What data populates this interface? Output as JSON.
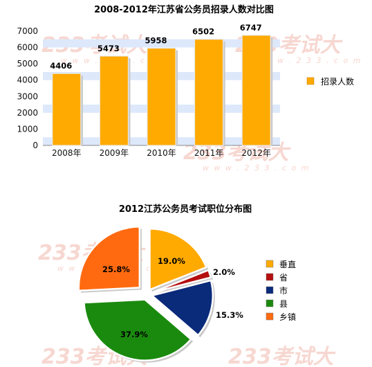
{
  "chart_data": [
    {
      "type": "bar",
      "title": "2008-2012年江苏省公务员招录人数对比图",
      "categories": [
        "2008年",
        "2009年",
        "2010年",
        "2011年",
        "2012年"
      ],
      "series": [
        {
          "name": "招录人数",
          "values": [
            4406,
            5473,
            5958,
            6502,
            6747
          ],
          "color": "#ffaa00"
        }
      ],
      "ylim": [
        0,
        7000
      ],
      "yticks": [
        "0",
        "1000",
        "2000",
        "3000",
        "4000",
        "5000",
        "6000",
        "7000"
      ],
      "grid": "alternating horizontal bands",
      "legend": "right"
    },
    {
      "type": "pie",
      "title": "2012江苏公务员考试职位分布图",
      "slices": [
        {
          "label": "垂直",
          "value": 19.0,
          "text": "19.0%",
          "color": "#ffaa00"
        },
        {
          "label": "省",
          "value": 2.0,
          "text": "2.0%",
          "color": "#b50f0f"
        },
        {
          "label": "市",
          "value": 15.3,
          "text": "15.3%",
          "color": "#0a2a7a"
        },
        {
          "label": "县",
          "value": 37.9,
          "text": "37.9%",
          "color": "#1a8a0f"
        },
        {
          "label": "乡镇",
          "value": 25.8,
          "text": "25.8%",
          "color": "#ff6a10"
        }
      ],
      "legend": "right"
    }
  ],
  "watermark": {
    "brand": "233考试大",
    "url": "w w w . 2 3 3 . c o m"
  }
}
